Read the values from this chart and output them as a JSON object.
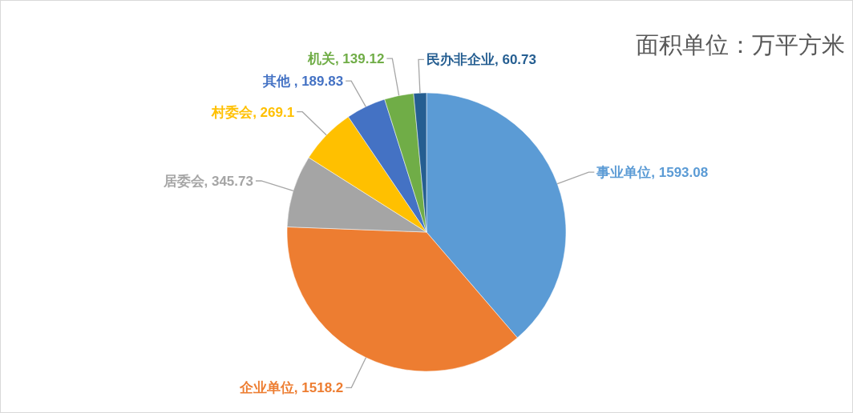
{
  "chart_data": {
    "type": "pie",
    "title": "面积单位：万平方米",
    "categories": [
      "事业单位",
      "企业单位",
      "居委会",
      "村委会",
      "其他 ",
      "机关",
      "民办非企业"
    ],
    "values": [
      1593.08,
      1518.2,
      345.73,
      269.1,
      189.83,
      139.12,
      60.73
    ],
    "value_labels": [
      ", 1593.08",
      ", 1518.2",
      ", 345.73",
      ", 269.1",
      ", 189.83",
      ", 139.12",
      ", 60.73"
    ],
    "colors": [
      "#5b9bd5",
      "#ed7d31",
      "#a5a5a5",
      "#ffc000",
      "#4472c4",
      "#70ad47",
      "#255e91"
    ]
  }
}
